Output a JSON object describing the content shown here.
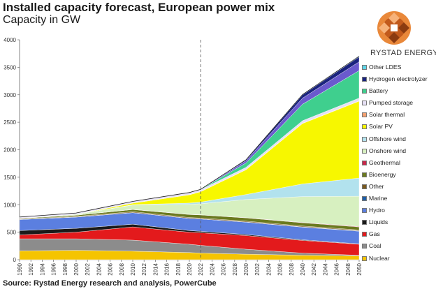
{
  "header": {
    "title": "Installed capacity forecast, European power mix",
    "subtitle": "Capacity in GW"
  },
  "footer": {
    "source": "Source: Rystad Energy research and analysis,  PowerCube"
  },
  "brand": {
    "name": "RYSTAD ENERGY"
  },
  "chart_data": {
    "type": "area",
    "stacked": true,
    "x": [
      1990,
      2000,
      2010,
      2020,
      2022,
      2030,
      2040,
      2050
    ],
    "xticks": [
      1990,
      1992,
      1994,
      1996,
      1998,
      2000,
      2002,
      2004,
      2006,
      2008,
      2010,
      2012,
      2014,
      2016,
      2018,
      2020,
      2022,
      2024,
      2026,
      2028,
      2030,
      2032,
      2034,
      2036,
      2038,
      2040,
      2042,
      2044,
      2046,
      2048,
      2050
    ],
    "ylim": [
      0,
      4000
    ],
    "yticks": [
      0,
      500,
      1000,
      1500,
      2000,
      2500,
      3000,
      3500,
      4000
    ],
    "forecast_start": 2022,
    "legend_position": "right",
    "series": [
      {
        "name": "Nuclear",
        "color": "#f5c400",
        "values": [
          160,
          170,
          155,
          130,
          120,
          100,
          80,
          70
        ]
      },
      {
        "name": "Coal",
        "color": "#8c8c8c",
        "values": [
          220,
          210,
          200,
          150,
          140,
          90,
          40,
          10
        ]
      },
      {
        "name": "Gas",
        "color": "#e31a1c",
        "values": [
          70,
          120,
          240,
          220,
          230,
          250,
          230,
          200
        ]
      },
      {
        "name": "Liquids",
        "color": "#1a1a1a",
        "values": [
          80,
          70,
          50,
          30,
          25,
          18,
          12,
          8
        ]
      },
      {
        "name": "Hydro",
        "color": "#5b7fe0",
        "values": [
          200,
          205,
          210,
          220,
          225,
          225,
          230,
          230
        ]
      },
      {
        "name": "Marine",
        "color": "#1f5fa8",
        "values": [
          2,
          2,
          2,
          2,
          2,
          3,
          5,
          8
        ]
      },
      {
        "name": "Other",
        "color": "#7a5a1e",
        "values": [
          10,
          12,
          15,
          15,
          15,
          15,
          15,
          15
        ]
      },
      {
        "name": "Bioenergy",
        "color": "#6b7a1f",
        "values": [
          10,
          20,
          40,
          55,
          57,
          60,
          60,
          55
        ]
      },
      {
        "name": "Geothermal",
        "color": "#c8284a",
        "values": [
          1,
          1,
          2,
          3,
          3,
          4,
          6,
          8
        ]
      },
      {
        "name": "Onshore wind",
        "color": "#d7f0c0",
        "values": [
          3,
          15,
          80,
          180,
          200,
          330,
          470,
          550
        ]
      },
      {
        "name": "Offshore wind",
        "color": "#b2e2ee",
        "values": [
          0,
          0,
          5,
          25,
          30,
          90,
          230,
          330
        ]
      },
      {
        "name": "Solar PV",
        "color": "#f7f700",
        "values": [
          0,
          0,
          30,
          150,
          190,
          450,
          1100,
          1400
        ]
      },
      {
        "name": "Solar thermal",
        "color": "#f3a070",
        "values": [
          0,
          0,
          1,
          3,
          3,
          4,
          5,
          6
        ]
      },
      {
        "name": "Pumped storage",
        "color": "#e6e0f5",
        "values": [
          20,
          25,
          30,
          35,
          35,
          40,
          45,
          50
        ]
      },
      {
        "name": "Battery",
        "color": "#3fcf8e",
        "values": [
          0,
          0,
          0,
          3,
          5,
          80,
          300,
          500
        ]
      },
      {
        "name": "Hydrogen electrolyzer",
        "color": "#1a237e",
        "values": [
          0,
          0,
          0,
          0,
          0,
          15,
          60,
          90
        ]
      },
      {
        "name": "Other LDES",
        "color": "#5ed6e8",
        "values": [
          0,
          0,
          0,
          0,
          0,
          2,
          6,
          10
        ]
      }
    ],
    "legend_order": [
      "Other LDES",
      "Hydrogen electrolyzer",
      "Battery",
      "Pumped storage",
      "Solar thermal",
      "Solar PV",
      "Offshore wind",
      "Onshore wind",
      "Geothermal",
      "Bioenergy",
      "Other",
      "Marine",
      "Hydro",
      "Liquids",
      "Gas",
      "Coal",
      "Nuclear"
    ],
    "extra_band": {
      "color": "#6a5acd",
      "values": [
        0,
        0,
        0,
        0,
        0,
        40,
        110,
        160
      ]
    }
  }
}
